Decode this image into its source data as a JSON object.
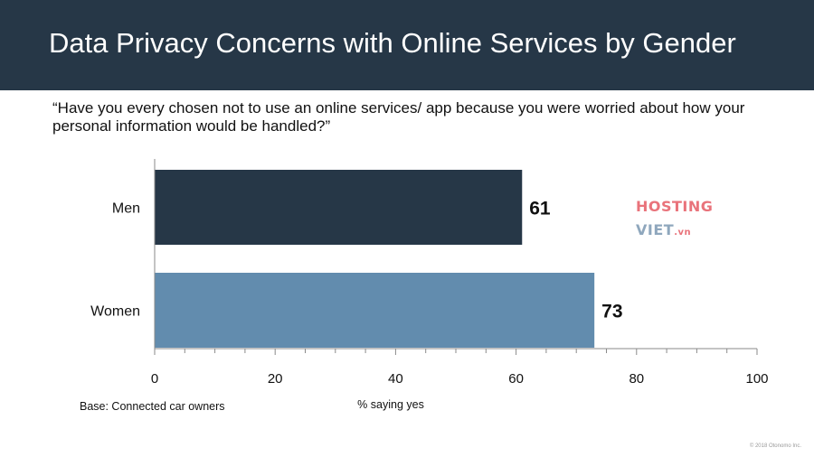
{
  "slide": {
    "title": "Data Privacy Concerns with Online Services by Gender",
    "question": "“Have you every chosen not to use an online services/ app because you were worried about how your personal information would be handled?”",
    "base_note": "Base: Connected car owners",
    "copyright": "© 2018 Otonomo Inc."
  },
  "logo": {
    "line1": "HOSTING",
    "line2_main": "VIET",
    "line2_tld": ".vn"
  },
  "chart_data": {
    "type": "bar",
    "orientation": "horizontal",
    "categories": [
      "Men",
      "Women"
    ],
    "values": [
      61,
      73
    ],
    "data_labels": [
      "61",
      "73"
    ],
    "bar_colors": [
      "#263747",
      "#628cae"
    ],
    "xlabel": "% saying yes",
    "xlim": [
      0,
      100
    ],
    "x_ticks": [
      0,
      20,
      40,
      60,
      80,
      100
    ],
    "grid": false,
    "legend": false
  }
}
